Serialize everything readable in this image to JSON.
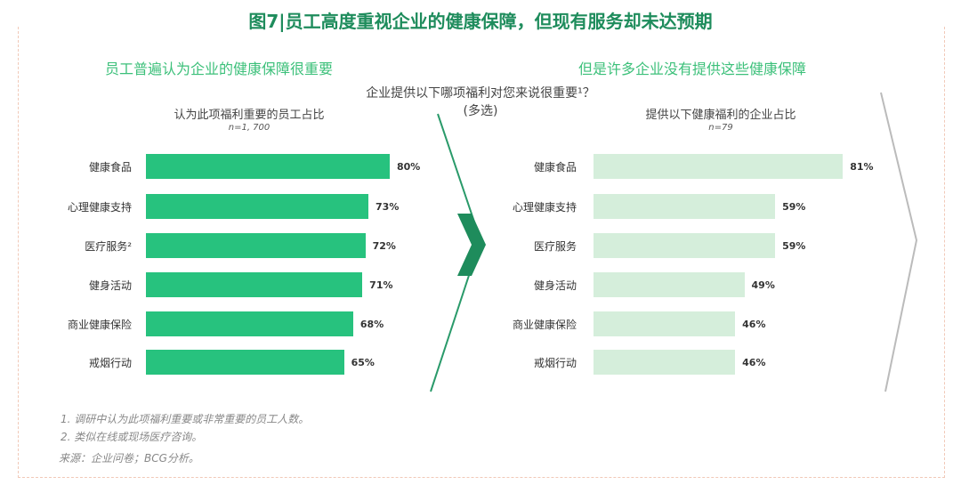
{
  "title": "图7|员工高度重视企业的健康保障，但现有服务却未达预期",
  "left_subtitle": "员工普遍认为企业的健康保障很重要",
  "right_subtitle": "但是许多企业没有提供这些健康保障",
  "question": "企业提供以下哪项福利对您来说很重要¹？",
  "question_note": "(多选)",
  "notes": [
    "1. 调研中认为此项福利重要或非常重要的员工人数。",
    "2. 类似在线或现场医疗咨询。"
  ],
  "source": "来源：企业问卷；BCG分析。",
  "colors": {
    "left_bar": "#27c27e",
    "right_bar": "#d5eedb",
    "title": "#1e8c5c"
  },
  "chart_data": [
    {
      "type": "bar",
      "orientation": "horizontal",
      "title": "认为此项福利重要的员工占比",
      "subtitle": "n=1, 700",
      "categories": [
        "健康食品",
        "心理健康支持",
        "医疗服务²",
        "健身活动",
        "商业健康保险",
        "戒烟行动"
      ],
      "values": [
        80,
        73,
        72,
        71,
        68,
        65
      ],
      "labels": [
        "80%",
        "73%",
        "72%",
        "71%",
        "68%",
        "65%"
      ],
      "unit": "%"
    },
    {
      "type": "bar",
      "orientation": "horizontal",
      "title": "提供以下健康福利的企业占比",
      "subtitle": "n=79",
      "categories": [
        "健康食品",
        "心理健康支持",
        "医疗服务",
        "健身活动",
        "商业健康保险",
        "戒烟行动"
      ],
      "values": [
        81,
        59,
        59,
        49,
        46,
        46
      ],
      "labels": [
        "81%",
        "59%",
        "59%",
        "49%",
        "46%",
        "46%"
      ],
      "unit": "%"
    }
  ]
}
